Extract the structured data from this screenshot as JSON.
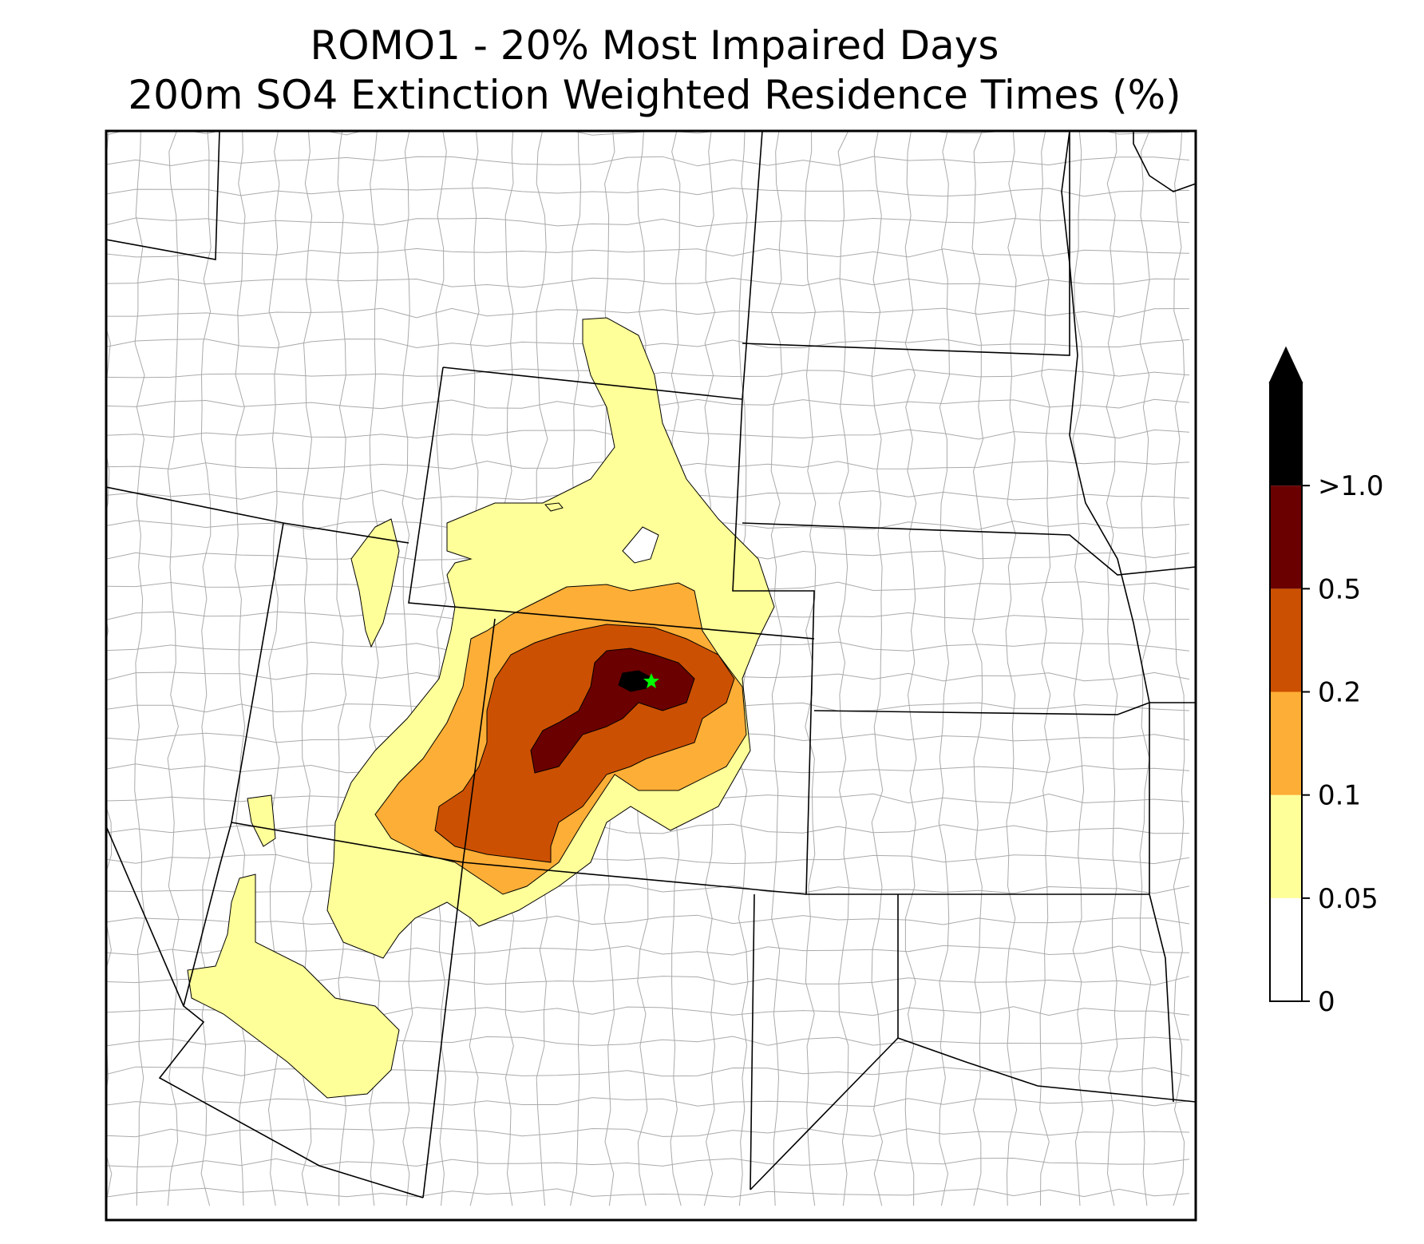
{
  "title": {
    "line1": "ROMO1 - 20% Most Impaired Days",
    "line2": "200m SO4 Extinction Weighted Residence Times (%)"
  },
  "colorbar": {
    "ticks": [
      "0",
      "0.05",
      "0.1",
      "0.2",
      "0.5",
      ">1.0"
    ],
    "bins": [
      {
        "label": "0-0.05",
        "color": "#ffffff"
      },
      {
        "label": "0.05-0.1",
        "color": "#ffff99"
      },
      {
        "label": "0.1-0.2",
        "color": "#fdae36"
      },
      {
        "label": "0.2-0.5",
        "color": "#cc5001"
      },
      {
        "label": "0.5-1.0",
        "color": "#6a0000"
      },
      {
        "label": ">1.0",
        "color": "#000000"
      }
    ]
  },
  "colors": {
    "state_border": "#000000",
    "county_border": "#aaaaaa",
    "receptor_marker": "#00ff00"
  },
  "marker": {
    "icon": "star-icon"
  }
}
